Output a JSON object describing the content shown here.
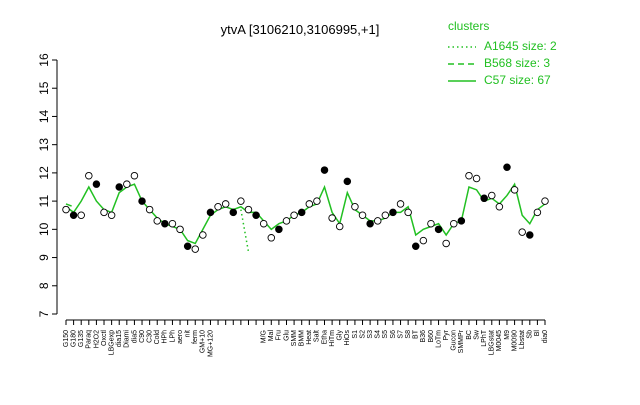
{
  "chart_data": {
    "type": "line",
    "title": "ytvA [3106210,3106995,+1]",
    "legend_title": "clusters",
    "legend_position": "top-right",
    "categories": [
      "G150",
      "G180",
      "G135",
      "Paraq",
      "H2O2",
      "Oxctl",
      "LBGexp",
      "dia15",
      "Diami",
      "dia5",
      "C90",
      "C30",
      "Cold",
      "HPh",
      "LPh",
      "aero",
      "nit",
      "ferm",
      "GM+10",
      "MG+120",
      null,
      null,
      null,
      null,
      null,
      null,
      "M/G",
      "Mal",
      "Fru",
      "Glu",
      "SMM",
      "BMM",
      "Heat",
      "Salt",
      "Etha",
      "HiTm",
      "Gly",
      "HiOs",
      "S1",
      "S2",
      "S3",
      "S4",
      "S5",
      "S6",
      "S7",
      "S8",
      "BT",
      "B36",
      "B60",
      "LoTm",
      "Pyr",
      "Gucon",
      "SMMPr",
      "BC",
      "Sw",
      "LPhT",
      "LBGstat",
      "M0045",
      "M9",
      "M0090",
      "Lbstat",
      "Sb",
      "Bl",
      "dia0"
    ],
    "series": [
      {
        "name": "A1645 size: 2",
        "color": "#22c022",
        "dash": "dotted",
        "values": [
          null,
          null,
          null,
          null,
          null,
          null,
          null,
          null,
          null,
          null,
          null,
          null,
          null,
          null,
          null,
          null,
          null,
          null,
          null,
          null,
          null,
          null,
          null,
          10.7,
          9.2,
          null,
          null,
          null,
          null,
          null,
          null,
          null,
          null,
          null,
          null,
          null,
          null,
          null,
          null,
          null,
          null,
          null,
          null,
          null,
          null,
          null,
          null,
          null,
          null,
          null,
          null,
          null,
          null,
          null,
          null,
          null,
          null,
          null,
          null,
          null,
          null,
          null,
          null,
          null
        ]
      },
      {
        "name": "B568 size: 3",
        "color": "#22c022",
        "dash": "dashed",
        "values": [
          10.9,
          10.8,
          null,
          null,
          null,
          null,
          null,
          null,
          null,
          null,
          null,
          null,
          null,
          null,
          null,
          null,
          null,
          null,
          null,
          null,
          null,
          null,
          null,
          null,
          null,
          null,
          null,
          null,
          null,
          null,
          null,
          null,
          null,
          null,
          null,
          null,
          null,
          null,
          null,
          null,
          null,
          null,
          null,
          null,
          null,
          null,
          null,
          null,
          null,
          null,
          null,
          null,
          null,
          null,
          null,
          null,
          null,
          null,
          null,
          null,
          null,
          null,
          null,
          null
        ]
      },
      {
        "name": "C57 size: 67",
        "color": "#22c022",
        "dash": "solid",
        "values": [
          10.8,
          10.6,
          11.0,
          11.5,
          11.0,
          10.7,
          10.6,
          11.3,
          11.5,
          11.6,
          11.0,
          10.7,
          10.4,
          10.2,
          10.1,
          10.0,
          9.6,
          9.5,
          10.0,
          10.5,
          10.7,
          10.8,
          10.7,
          10.8,
          10.6,
          10.6,
          10.3,
          10.0,
          10.2,
          10.3,
          10.5,
          10.6,
          10.8,
          10.9,
          11.5,
          10.6,
          10.2,
          11.3,
          10.7,
          10.5,
          10.3,
          10.3,
          10.4,
          10.6,
          10.6,
          10.8,
          9.8,
          10.0,
          10.1,
          10.2,
          9.8,
          10.2,
          10.3,
          11.5,
          11.4,
          11.0,
          11.1,
          10.9,
          11.2,
          11.6,
          10.5,
          10.2,
          10.7,
          10.9
        ]
      }
    ],
    "points": {
      "color": "#000000",
      "values": [
        10.7,
        10.5,
        10.5,
        11.9,
        11.6,
        10.6,
        10.5,
        11.5,
        11.6,
        11.9,
        11.0,
        10.7,
        10.3,
        10.2,
        10.2,
        10.0,
        9.4,
        9.3,
        9.8,
        10.6,
        10.8,
        10.9,
        10.6,
        11.0,
        10.7,
        10.5,
        10.2,
        9.7,
        10.0,
        10.3,
        10.5,
        10.6,
        10.9,
        11.0,
        12.1,
        10.4,
        10.1,
        11.7,
        10.8,
        10.5,
        10.2,
        10.3,
        10.5,
        10.6,
        10.9,
        10.6,
        9.4,
        9.6,
        10.2,
        10.0,
        9.5,
        10.2,
        10.3,
        11.9,
        11.8,
        11.1,
        11.2,
        10.8,
        12.2,
        11.4,
        9.9,
        9.8,
        10.6,
        11.0
      ]
    },
    "ylim": [
      7,
      16
    ],
    "yticks": [
      7,
      8,
      9,
      10,
      11,
      12,
      13,
      14,
      15,
      16
    ],
    "grid": false
  }
}
